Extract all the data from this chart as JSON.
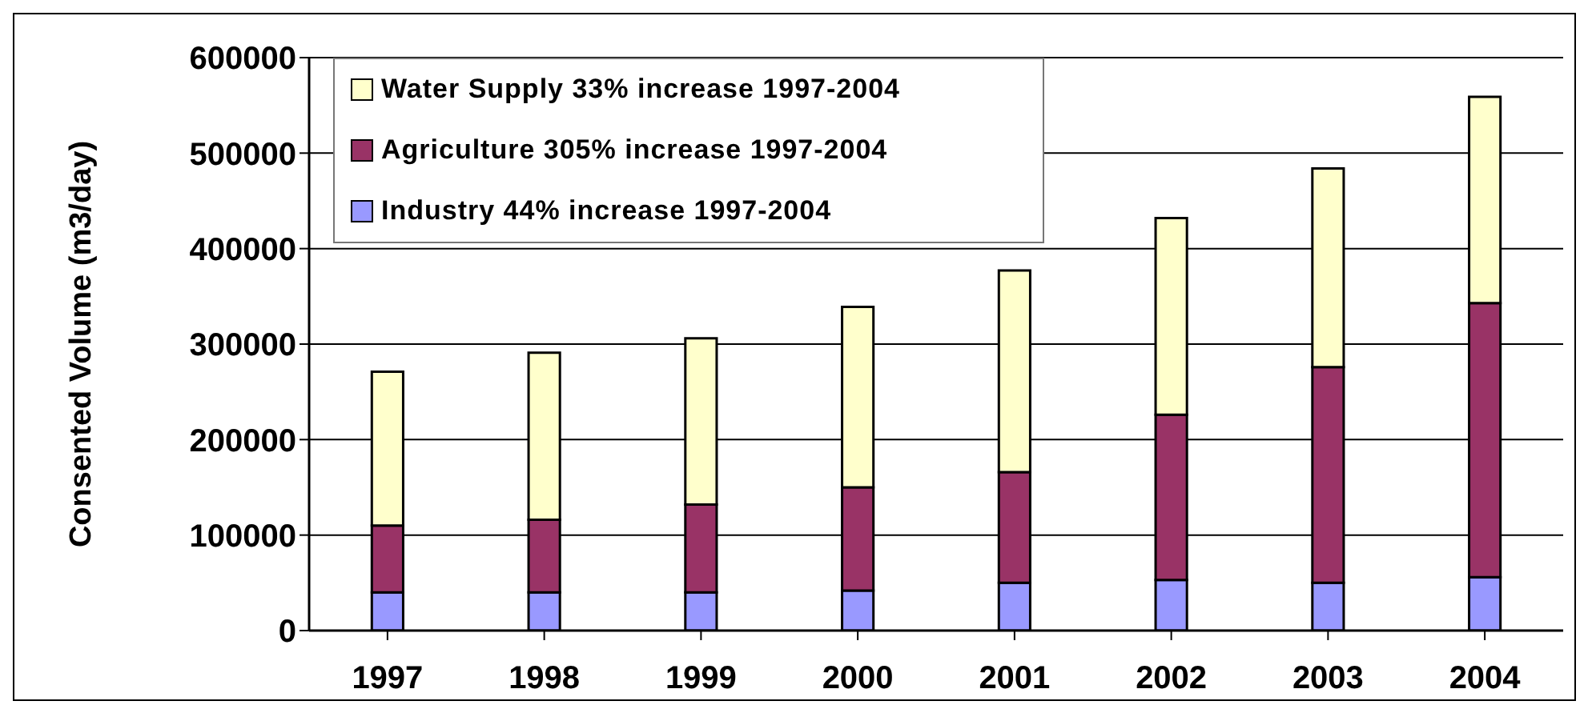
{
  "chart_data": {
    "type": "bar",
    "stacked": true,
    "ylabel": "Consented Volume (m3/day)",
    "categories": [
      "1997",
      "1998",
      "1999",
      "2000",
      "2001",
      "2002",
      "2003",
      "2004"
    ],
    "series": [
      {
        "name": "Industry 44% increase 1997-2004",
        "color": "#9999ff",
        "values": [
          40000,
          40000,
          40000,
          42000,
          50000,
          53000,
          50000,
          56000
        ]
      },
      {
        "name": "Agriculture 305% increase 1997-2004",
        "color": "#993366",
        "values": [
          70000,
          76000,
          92000,
          108000,
          116000,
          173000,
          226000,
          287000
        ]
      },
      {
        "name": "Water Supply 33% increase 1997-2004",
        "color": "#ffffcc",
        "values": [
          161000,
          175000,
          174000,
          189000,
          211000,
          206000,
          208000,
          216000
        ]
      }
    ],
    "ylim": [
      0,
      600000
    ],
    "yticks": [
      0,
      100000,
      200000,
      300000,
      400000,
      500000,
      600000
    ],
    "grid": "y",
    "legend": "top left"
  }
}
